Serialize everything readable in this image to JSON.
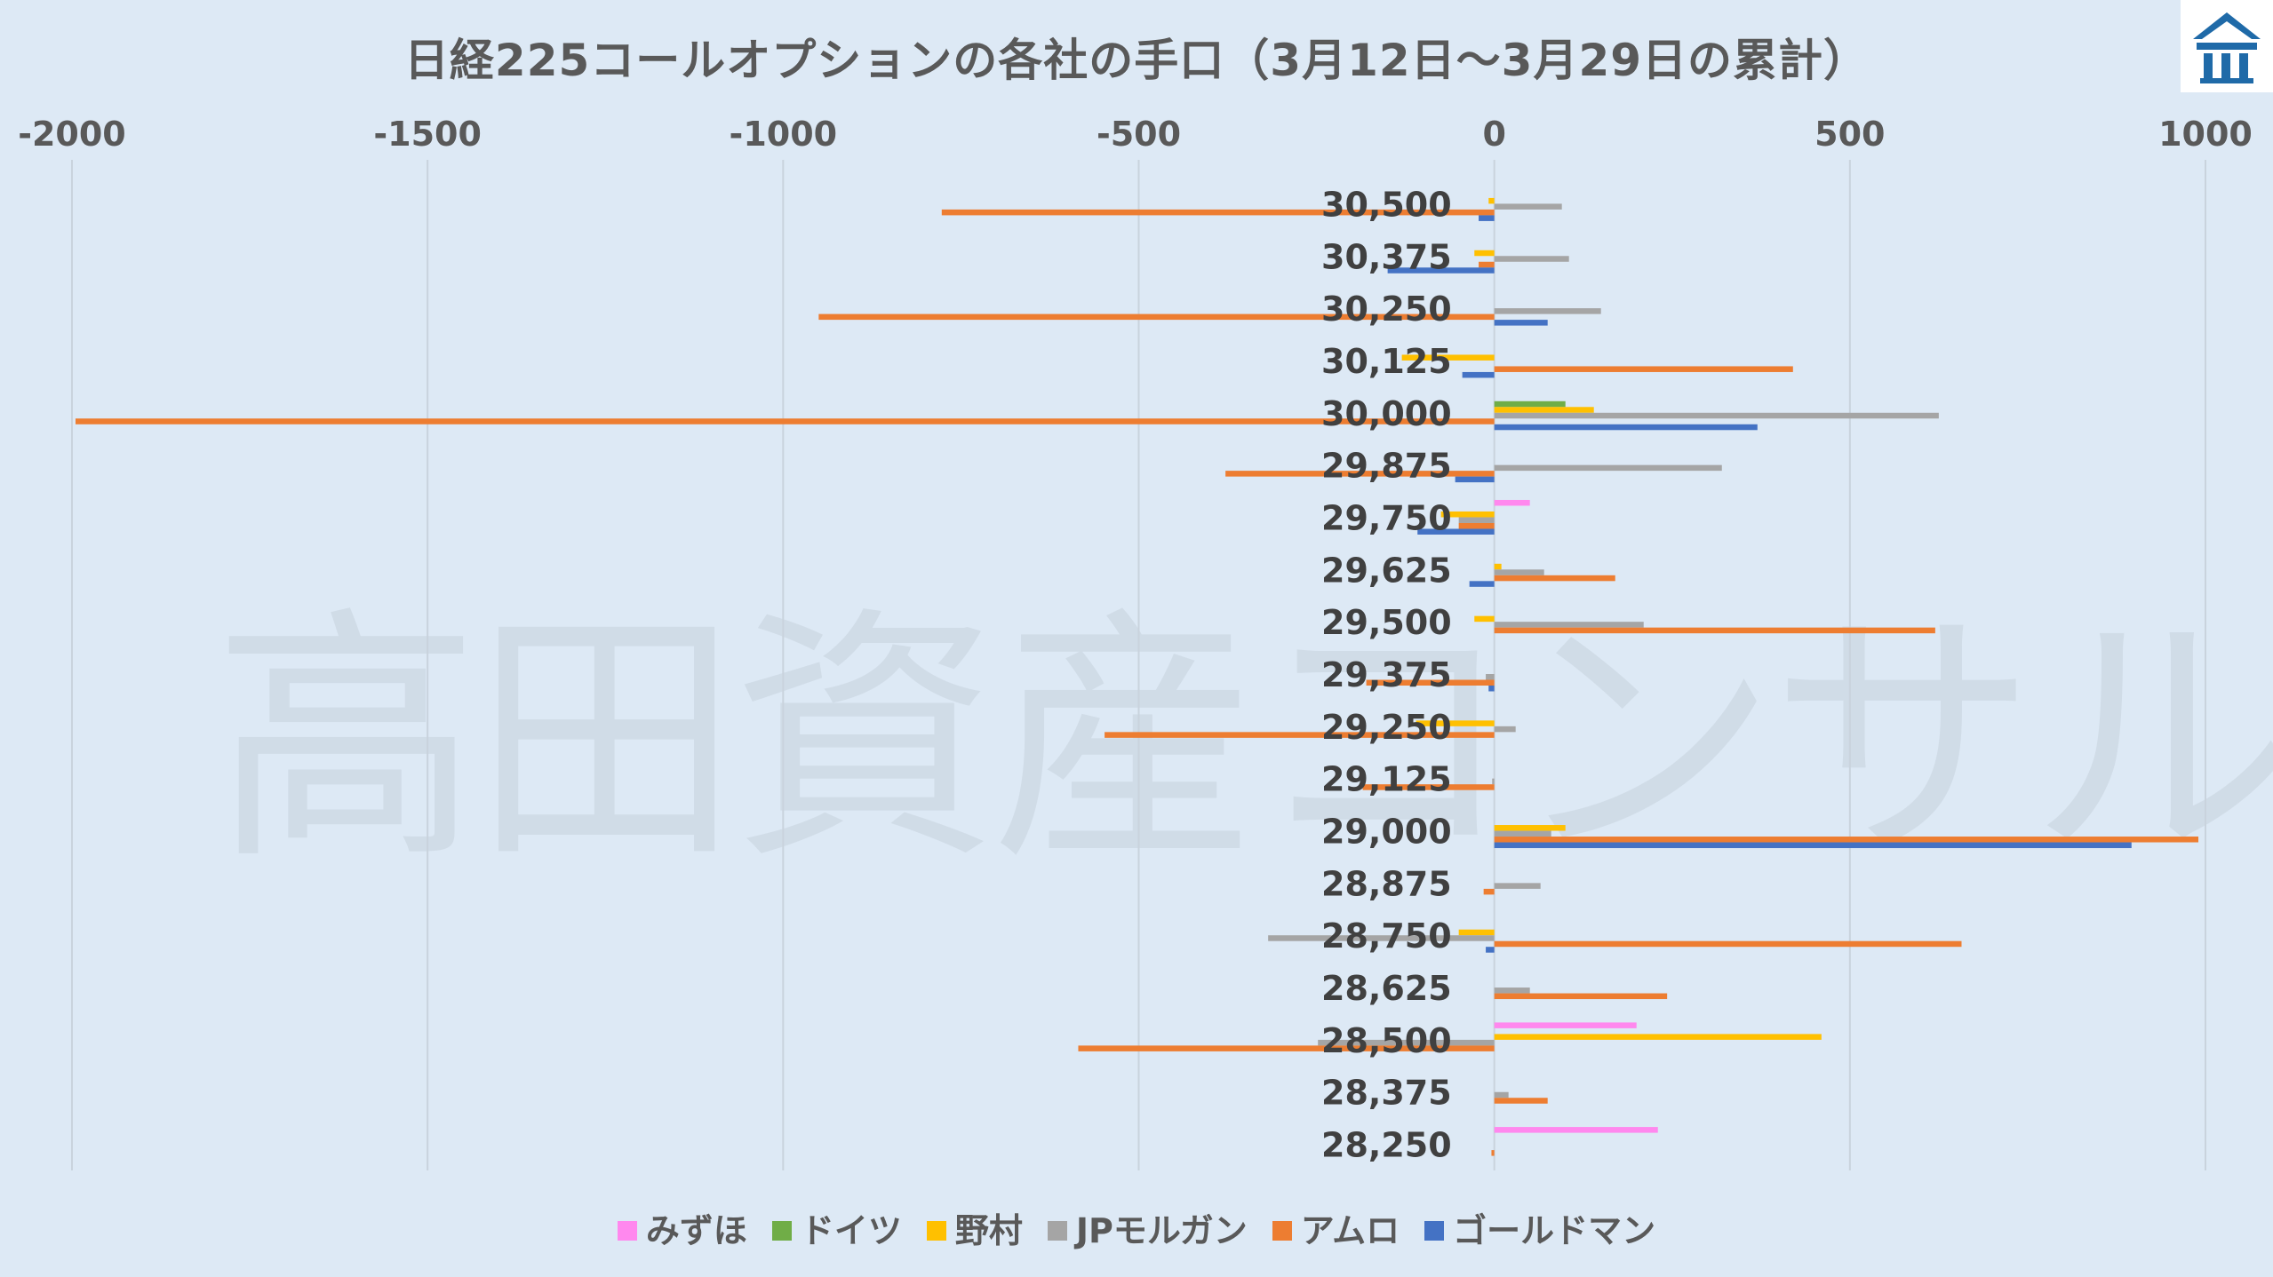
{
  "chart_data": {
    "type": "bar",
    "orientation": "horizontal",
    "title": "日経225コールオプションの各社の手口（3月12日～3月29日の累計）",
    "watermark": "高田資産コンサル",
    "xlim": [
      -2000,
      1000
    ],
    "xticks": [
      "-2000",
      "-1500",
      "-1000",
      "-500",
      "0",
      "500",
      "1000"
    ],
    "xtick_values": [
      -2000,
      -1500,
      -1000,
      -500,
      0,
      500,
      1000
    ],
    "axis_position": "top",
    "grid": true,
    "legend_position": "bottom",
    "categories": [
      "30,500",
      "30,375",
      "30,250",
      "30,125",
      "30,000",
      "29,875",
      "29,750",
      "29,625",
      "29,500",
      "29,375",
      "29,250",
      "29,125",
      "29,000",
      "28,875",
      "28,750",
      "28,625",
      "28,500",
      "28,375",
      "28,250"
    ],
    "series": [
      {
        "name": "みずほ",
        "color": "#ff88ee",
        "values": [
          0,
          0,
          0,
          0,
          0,
          0,
          50,
          0,
          0,
          0,
          0,
          0,
          0,
          0,
          0,
          0,
          200,
          0,
          230
        ]
      },
      {
        "name": "ドイツ",
        "color": "#70ad47",
        "values": [
          0,
          0,
          0,
          0,
          100,
          0,
          0,
          0,
          0,
          0,
          0,
          0,
          0,
          0,
          0,
          0,
          0,
          0,
          0
        ]
      },
      {
        "name": "野村",
        "color": "#ffc000",
        "values": [
          -8,
          -28,
          0,
          -130,
          140,
          0,
          -75,
          10,
          -28,
          0,
          -110,
          0,
          100,
          0,
          -50,
          0,
          460,
          0,
          0
        ]
      },
      {
        "name": "JPモルガン",
        "color": "#a5a5a5",
        "values": [
          95,
          105,
          150,
          0,
          625,
          320,
          -50,
          70,
          210,
          -12,
          30,
          -3,
          80,
          65,
          -318,
          50,
          -248,
          20,
          0
        ]
      },
      {
        "name": "アムロ",
        "color": "#ed7d31",
        "values": [
          -777,
          -22,
          -950,
          420,
          -1995,
          -378,
          -50,
          170,
          620,
          -180,
          -548,
          -185,
          990,
          -15,
          657,
          243,
          -585,
          75,
          -4
        ]
      },
      {
        "name": "ゴールドマン",
        "color": "#4472c4",
        "values": [
          -22,
          -150,
          75,
          -45,
          370,
          -55,
          -108,
          -35,
          0,
          -8,
          0,
          0,
          896,
          0,
          -12,
          0,
          0,
          0,
          0
        ]
      }
    ]
  }
}
